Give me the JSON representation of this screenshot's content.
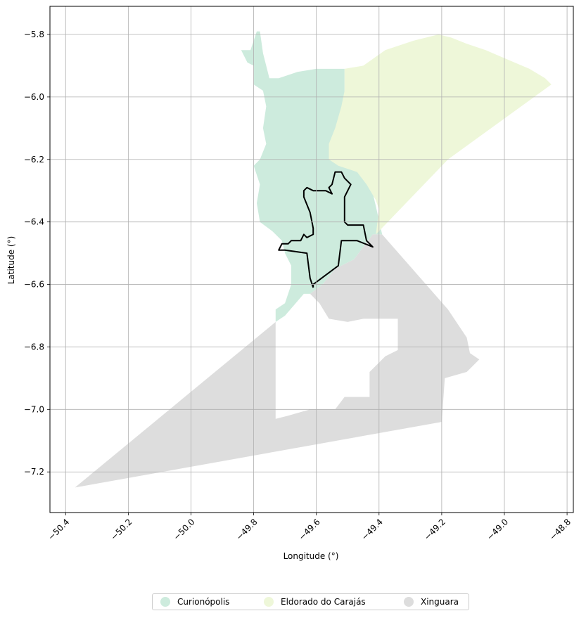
{
  "chart_data": {
    "type": "map",
    "xlabel": "Longitude (°)",
    "ylabel": "Latitude (°)",
    "xlim": [
      -50.45,
      -48.78
    ],
    "ylim": [
      -7.33,
      -5.71
    ],
    "grid": true,
    "x_ticks": [
      -50.4,
      -50.2,
      -50.0,
      -49.8,
      -49.6,
      -49.4,
      -49.2,
      -49.0,
      -48.8
    ],
    "x_tick_labels": [
      "−50.4",
      "−50.2",
      "−50.0",
      "−49.8",
      "−49.6",
      "−49.4",
      "−49.2",
      "−49.0",
      "−48.8"
    ],
    "y_ticks": [
      -5.8,
      -6.0,
      -6.2,
      -6.4,
      -6.6,
      -6.8,
      -7.0,
      -7.2
    ],
    "y_tick_labels": [
      "−5.8",
      "−6.0",
      "−6.2",
      "−6.4",
      "−6.6",
      "−6.8",
      "−7.0",
      "−7.2"
    ],
    "legend_position": "bottom-center",
    "regions": [
      {
        "name": "Curionópolis",
        "color": "#cdebdd",
        "polygon": [
          [
            -49.84,
            -5.85
          ],
          [
            -49.81,
            -5.85
          ],
          [
            -49.79,
            -5.79
          ],
          [
            -49.78,
            -5.79
          ],
          [
            -49.77,
            -5.86
          ],
          [
            -49.75,
            -5.94
          ],
          [
            -49.72,
            -5.94
          ],
          [
            -49.66,
            -5.92
          ],
          [
            -49.6,
            -5.91
          ],
          [
            -49.52,
            -5.91
          ],
          [
            -49.51,
            -5.91
          ],
          [
            -49.51,
            -5.98
          ],
          [
            -49.51,
            -6.05
          ],
          [
            -49.51,
            -6.15
          ],
          [
            -49.49,
            -6.18
          ],
          [
            -49.45,
            -6.18
          ],
          [
            -49.41,
            -6.35
          ],
          [
            -49.39,
            -6.44
          ],
          [
            -49.42,
            -6.44
          ],
          [
            -49.48,
            -6.52
          ],
          [
            -49.54,
            -6.55
          ],
          [
            -49.58,
            -6.6
          ],
          [
            -49.62,
            -6.63
          ],
          [
            -49.64,
            -6.63
          ],
          [
            -49.7,
            -6.7
          ],
          [
            -49.73,
            -6.72
          ],
          [
            -49.73,
            -6.68
          ],
          [
            -49.7,
            -6.66
          ],
          [
            -49.68,
            -6.6
          ],
          [
            -49.68,
            -6.54
          ],
          [
            -49.7,
            -6.5
          ],
          [
            -49.71,
            -6.46
          ],
          [
            -49.74,
            -6.43
          ],
          [
            -49.78,
            -6.4
          ],
          [
            -49.79,
            -6.34
          ],
          [
            -49.78,
            -6.28
          ],
          [
            -49.8,
            -6.22
          ],
          [
            -49.78,
            -6.2
          ],
          [
            -49.76,
            -6.15
          ],
          [
            -49.77,
            -6.1
          ],
          [
            -49.76,
            -6.03
          ],
          [
            -49.77,
            -5.98
          ],
          [
            -49.8,
            -5.96
          ],
          [
            -49.8,
            -5.9
          ],
          [
            -49.82,
            -5.89
          ]
        ]
      },
      {
        "name": "Eldorado do Carajás",
        "color": "#eef7d9",
        "polygon": [
          [
            -49.51,
            -5.91
          ],
          [
            -49.45,
            -5.9
          ],
          [
            -49.38,
            -5.85
          ],
          [
            -49.29,
            -5.82
          ],
          [
            -49.21,
            -5.8
          ],
          [
            -49.17,
            -5.81
          ],
          [
            -49.12,
            -5.83
          ],
          [
            -49.06,
            -5.85
          ],
          [
            -48.99,
            -5.88
          ],
          [
            -48.92,
            -5.91
          ],
          [
            -48.87,
            -5.94
          ],
          [
            -48.85,
            -5.96
          ],
          [
            -49.18,
            -6.2
          ],
          [
            -49.41,
            -6.44
          ],
          [
            -49.4,
            -6.36
          ],
          [
            -49.41,
            -6.33
          ],
          [
            -49.44,
            -6.28
          ],
          [
            -49.47,
            -6.24
          ],
          [
            -49.53,
            -6.22
          ],
          [
            -49.56,
            -6.2
          ],
          [
            -49.56,
            -6.15
          ],
          [
            -49.54,
            -6.1
          ],
          [
            -49.52,
            -6.03
          ],
          [
            -49.51,
            -5.98
          ]
        ]
      },
      {
        "name": "Xinguara",
        "color": "#dddddd",
        "polygon": [
          [
            -49.39,
            -6.44
          ],
          [
            -49.18,
            -6.68
          ],
          [
            -49.12,
            -6.77
          ],
          [
            -49.11,
            -6.82
          ],
          [
            -49.08,
            -6.84
          ],
          [
            -49.12,
            -6.88
          ],
          [
            -49.19,
            -6.9
          ],
          [
            -49.2,
            -7.04
          ],
          [
            -50.37,
            -7.25
          ],
          [
            -49.73,
            -6.72
          ],
          [
            -49.73,
            -7.03
          ],
          [
            -49.69,
            -7.02
          ],
          [
            -49.62,
            -7.0
          ],
          [
            -49.54,
            -7.0
          ],
          [
            -49.51,
            -6.96
          ],
          [
            -49.43,
            -6.96
          ],
          [
            -49.43,
            -6.88
          ],
          [
            -49.38,
            -6.83
          ],
          [
            -49.34,
            -6.81
          ],
          [
            -49.34,
            -6.71
          ],
          [
            -49.45,
            -6.71
          ],
          [
            -49.5,
            -6.72
          ],
          [
            -49.56,
            -6.71
          ],
          [
            -49.59,
            -6.66
          ],
          [
            -49.62,
            -6.63
          ],
          [
            -49.58,
            -6.6
          ],
          [
            -49.54,
            -6.55
          ],
          [
            -49.48,
            -6.52
          ],
          [
            -49.42,
            -6.44
          ]
        ]
      }
    ],
    "outline": {
      "color": "#000000",
      "polyline": [
        [
          -49.61,
          -6.61
        ],
        [
          -49.61,
          -6.6
        ],
        [
          -49.53,
          -6.54
        ],
        [
          -49.52,
          -6.46
        ],
        [
          -49.5,
          -6.46
        ],
        [
          -49.47,
          -6.46
        ],
        [
          -49.42,
          -6.48
        ],
        [
          -49.44,
          -6.46
        ],
        [
          -49.45,
          -6.41
        ],
        [
          -49.5,
          -6.41
        ],
        [
          -49.51,
          -6.4
        ],
        [
          -49.51,
          -6.32
        ],
        [
          -49.49,
          -6.28
        ],
        [
          -49.51,
          -6.26
        ],
        [
          -49.52,
          -6.24
        ],
        [
          -49.54,
          -6.24
        ],
        [
          -49.55,
          -6.28
        ],
        [
          -49.56,
          -6.29
        ],
        [
          -49.55,
          -6.31
        ],
        [
          -49.57,
          -6.3
        ],
        [
          -49.59,
          -6.3
        ],
        [
          -49.6,
          -6.3
        ],
        [
          -49.61,
          -6.3
        ],
        [
          -49.63,
          -6.29
        ],
        [
          -49.64,
          -6.3
        ],
        [
          -49.64,
          -6.32
        ],
        [
          -49.62,
          -6.37
        ],
        [
          -49.61,
          -6.42
        ],
        [
          -49.61,
          -6.44
        ],
        [
          -49.63,
          -6.45
        ],
        [
          -49.64,
          -6.44
        ],
        [
          -49.65,
          -6.46
        ],
        [
          -49.68,
          -6.46
        ],
        [
          -49.69,
          -6.47
        ],
        [
          -49.71,
          -6.47
        ],
        [
          -49.72,
          -6.49
        ],
        [
          -49.7,
          -6.49
        ],
        [
          -49.63,
          -6.5
        ],
        [
          -49.62,
          -6.58
        ],
        [
          -49.61,
          -6.61
        ]
      ]
    }
  },
  "legend": {
    "items": [
      {
        "label": "Curionópolis",
        "color": "#cdebdd"
      },
      {
        "label": "Eldorado do Carajás",
        "color": "#eef7d9"
      },
      {
        "label": "Xinguara",
        "color": "#dddddd"
      }
    ]
  }
}
